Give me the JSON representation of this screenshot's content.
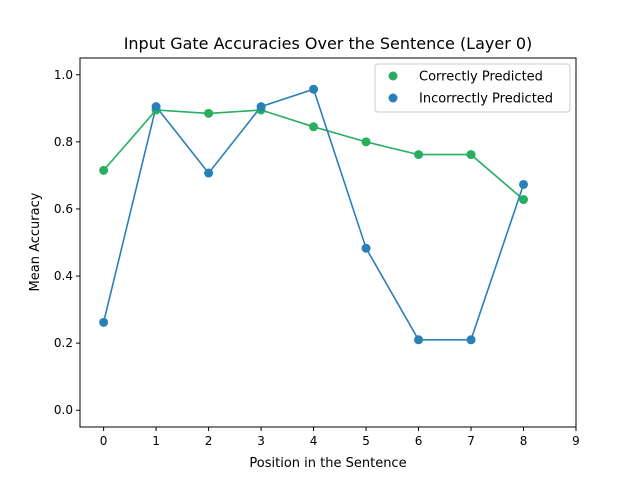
{
  "chart_data": {
    "type": "line",
    "title": "Input Gate Accuracies Over the Sentence (Layer  0)",
    "xlabel": "Position in the Sentence",
    "ylabel": "Mean Accuracy",
    "xlim": [
      -0.45,
      9.0
    ],
    "ylim": [
      -0.05,
      1.05
    ],
    "xticks": [
      0,
      1,
      2,
      3,
      4,
      5,
      6,
      7,
      8,
      9
    ],
    "xtick_labels": [
      "0",
      "1",
      "2",
      "3",
      "4",
      "5",
      "6",
      "7",
      "8",
      "9"
    ],
    "yticks": [
      0.0,
      0.2,
      0.4,
      0.6,
      0.8,
      1.0
    ],
    "ytick_labels": [
      "0.0",
      "0.2",
      "0.4",
      "0.6",
      "0.8",
      "1.0"
    ],
    "grid": false,
    "legend_position": "top-right",
    "series": [
      {
        "name": "Correctly Predicted",
        "color": "#27ae60",
        "x": [
          0,
          1,
          2,
          3,
          4,
          5,
          6,
          7,
          8
        ],
        "y": [
          0.715,
          0.895,
          0.885,
          0.895,
          0.845,
          0.8,
          0.762,
          0.762,
          0.628
        ]
      },
      {
        "name": "Incorrectly Predicted",
        "color": "#2980b9",
        "x": [
          0,
          1,
          2,
          3,
          4,
          5,
          6,
          7,
          8
        ],
        "y": [
          0.262,
          0.905,
          0.707,
          0.905,
          0.957,
          0.483,
          0.21,
          0.21,
          0.673
        ]
      }
    ]
  }
}
